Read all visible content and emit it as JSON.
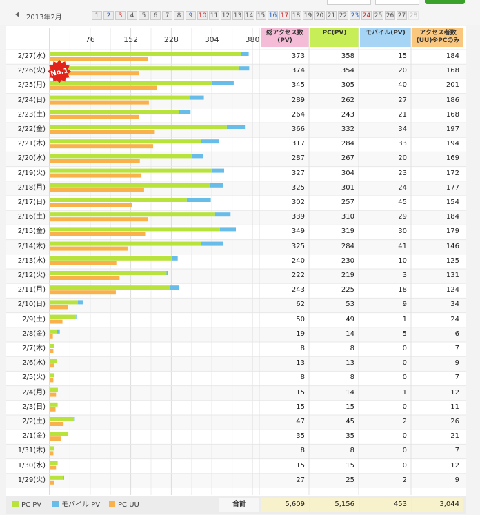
{
  "header": {
    "month_label": "2013年2月",
    "days": [
      {
        "label": "1",
        "type": "weekday"
      },
      {
        "label": "2",
        "type": "sat"
      },
      {
        "label": "3",
        "type": "sun"
      },
      {
        "label": "4",
        "type": "weekday"
      },
      {
        "label": "5",
        "type": "weekday"
      },
      {
        "label": "6",
        "type": "weekday"
      },
      {
        "label": "7",
        "type": "weekday"
      },
      {
        "label": "8",
        "type": "weekday"
      },
      {
        "label": "9",
        "type": "sat"
      },
      {
        "label": "10",
        "type": "sun"
      },
      {
        "label": "11",
        "type": "weekday"
      },
      {
        "label": "12",
        "type": "weekday"
      },
      {
        "label": "13",
        "type": "weekday"
      },
      {
        "label": "14",
        "type": "weekday"
      },
      {
        "label": "15",
        "type": "weekday"
      },
      {
        "label": "16",
        "type": "sat"
      },
      {
        "label": "17",
        "type": "sun"
      },
      {
        "label": "18",
        "type": "weekday"
      },
      {
        "label": "19",
        "type": "weekday"
      },
      {
        "label": "20",
        "type": "weekday"
      },
      {
        "label": "21",
        "type": "weekday"
      },
      {
        "label": "22",
        "type": "weekday"
      },
      {
        "label": "23",
        "type": "sat"
      },
      {
        "label": "24",
        "type": "sun"
      },
      {
        "label": "25",
        "type": "weekday"
      },
      {
        "label": "26",
        "type": "weekday"
      },
      {
        "label": "27",
        "type": "weekday"
      },
      {
        "label": "28",
        "type": "faded"
      }
    ]
  },
  "table": {
    "col_total": "総アクセス数(PV)",
    "col_pc": "PC(PV)",
    "col_mobile": "モバイル(PV)",
    "col_uu": "アクセス者数(UU)※PCのみ",
    "total_label": "合計",
    "totals": {
      "total": "5,609",
      "pc": "5,156",
      "mobile": "453",
      "uu": "3,044"
    }
  },
  "badge": {
    "text": "No.1"
  },
  "legend": {
    "pc_pv": "PC PV",
    "mobile_pv": "モバイル PV",
    "pc_uu": "PC UU"
  },
  "colors": {
    "pc_pv": "#b8e33c",
    "mobile_pv": "#67bde8",
    "pc_uu": "#f9b24b",
    "total_header": "#f4bcd6",
    "pc_header": "#c7ee56",
    "mobile_header": "#a6d4f5",
    "uu_header": "#fac77f"
  },
  "chart_data": {
    "type": "bar",
    "orientation": "horizontal",
    "stacked_series": [
      "PC PV",
      "モバイル PV"
    ],
    "xlim": [
      0,
      380
    ],
    "xticks": [
      76,
      152,
      228,
      304,
      380
    ],
    "grid": true,
    "legend_position": "bottom-left",
    "rows": [
      {
        "date": "2/27(水)",
        "total": 373,
        "pc": 358,
        "mobile": 15,
        "uu": 184
      },
      {
        "date": "2/26(火)",
        "total": 374,
        "pc": 354,
        "mobile": 20,
        "uu": 168
      },
      {
        "date": "2/25(月)",
        "total": 345,
        "pc": 305,
        "mobile": 40,
        "uu": 201
      },
      {
        "date": "2/24(日)",
        "total": 289,
        "pc": 262,
        "mobile": 27,
        "uu": 186
      },
      {
        "date": "2/23(土)",
        "total": 264,
        "pc": 243,
        "mobile": 21,
        "uu": 168
      },
      {
        "date": "2/22(金)",
        "total": 366,
        "pc": 332,
        "mobile": 34,
        "uu": 197
      },
      {
        "date": "2/21(木)",
        "total": 317,
        "pc": 284,
        "mobile": 33,
        "uu": 194
      },
      {
        "date": "2/20(水)",
        "total": 287,
        "pc": 267,
        "mobile": 20,
        "uu": 169
      },
      {
        "date": "2/19(火)",
        "total": 327,
        "pc": 304,
        "mobile": 23,
        "uu": 172
      },
      {
        "date": "2/18(月)",
        "total": 325,
        "pc": 301,
        "mobile": 24,
        "uu": 177
      },
      {
        "date": "2/17(日)",
        "total": 302,
        "pc": 257,
        "mobile": 45,
        "uu": 154
      },
      {
        "date": "2/16(土)",
        "total": 339,
        "pc": 310,
        "mobile": 29,
        "uu": 184
      },
      {
        "date": "2/15(金)",
        "total": 349,
        "pc": 319,
        "mobile": 30,
        "uu": 179
      },
      {
        "date": "2/14(木)",
        "total": 325,
        "pc": 284,
        "mobile": 41,
        "uu": 146
      },
      {
        "date": "2/13(水)",
        "total": 240,
        "pc": 230,
        "mobile": 10,
        "uu": 125
      },
      {
        "date": "2/12(火)",
        "total": 222,
        "pc": 219,
        "mobile": 3,
        "uu": 131
      },
      {
        "date": "2/11(月)",
        "total": 243,
        "pc": 225,
        "mobile": 18,
        "uu": 124
      },
      {
        "date": "2/10(日)",
        "total": 62,
        "pc": 53,
        "mobile": 9,
        "uu": 34
      },
      {
        "date": "2/9(土)",
        "total": 50,
        "pc": 49,
        "mobile": 1,
        "uu": 24
      },
      {
        "date": "2/8(金)",
        "total": 19,
        "pc": 14,
        "mobile": 5,
        "uu": 6
      },
      {
        "date": "2/7(木)",
        "total": 8,
        "pc": 8,
        "mobile": 0,
        "uu": 7
      },
      {
        "date": "2/6(水)",
        "total": 13,
        "pc": 13,
        "mobile": 0,
        "uu": 9
      },
      {
        "date": "2/5(火)",
        "total": 8,
        "pc": 8,
        "mobile": 0,
        "uu": 7
      },
      {
        "date": "2/4(月)",
        "total": 15,
        "pc": 14,
        "mobile": 1,
        "uu": 12
      },
      {
        "date": "2/3(日)",
        "total": 15,
        "pc": 15,
        "mobile": 0,
        "uu": 11
      },
      {
        "date": "2/2(土)",
        "total": 47,
        "pc": 45,
        "mobile": 2,
        "uu": 26
      },
      {
        "date": "2/1(金)",
        "total": 35,
        "pc": 35,
        "mobile": 0,
        "uu": 21
      },
      {
        "date": "1/31(木)",
        "total": 8,
        "pc": 8,
        "mobile": 0,
        "uu": 7
      },
      {
        "date": "1/30(水)",
        "total": 15,
        "pc": 15,
        "mobile": 0,
        "uu": 12
      },
      {
        "date": "1/29(火)",
        "total": 27,
        "pc": 25,
        "mobile": 2,
        "uu": 9
      }
    ]
  }
}
